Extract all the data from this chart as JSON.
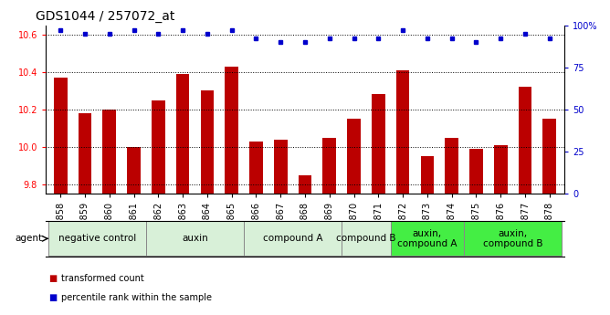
{
  "title": "GDS1044 / 257072_at",
  "samples": [
    "GSM25858",
    "GSM25859",
    "GSM25860",
    "GSM25861",
    "GSM25862",
    "GSM25863",
    "GSM25864",
    "GSM25865",
    "GSM25866",
    "GSM25867",
    "GSM25868",
    "GSM25869",
    "GSM25870",
    "GSM25871",
    "GSM25872",
    "GSM25873",
    "GSM25874",
    "GSM25875",
    "GSM25876",
    "GSM25877",
    "GSM25878"
  ],
  "red_values": [
    10.37,
    10.18,
    10.2,
    10.0,
    10.25,
    10.39,
    10.3,
    10.43,
    10.03,
    10.04,
    9.85,
    10.05,
    10.15,
    10.28,
    10.41,
    9.95,
    10.05,
    9.99,
    10.01,
    10.32,
    10.15
  ],
  "blue_values": [
    97,
    95,
    95,
    97,
    95,
    97,
    95,
    97,
    92,
    90,
    90,
    92,
    92,
    92,
    97,
    92,
    92,
    90,
    92,
    95,
    92
  ],
  "ylim_left": [
    9.75,
    10.65
  ],
  "ylim_right": [
    0,
    100
  ],
  "yticks_left": [
    9.8,
    10.0,
    10.2,
    10.4,
    10.6
  ],
  "yticks_right": [
    0,
    25,
    50,
    75,
    100
  ],
  "agent_groups": [
    {
      "label": "negative control",
      "start": 0,
      "end": 4,
      "color": "#d8f0d8"
    },
    {
      "label": "auxin",
      "start": 4,
      "end": 8,
      "color": "#d8f0d8"
    },
    {
      "label": "compound A",
      "start": 8,
      "end": 12,
      "color": "#d8f0d8"
    },
    {
      "label": "compound B",
      "start": 12,
      "end": 14,
      "color": "#d8f0d8"
    },
    {
      "label": "auxin,\ncompound A",
      "start": 14,
      "end": 17,
      "color": "#44ee44"
    },
    {
      "label": "auxin,\ncompound B",
      "start": 17,
      "end": 21,
      "color": "#44ee44"
    }
  ],
  "bar_color": "#bb0000",
  "dot_color": "#0000cc",
  "grid_color": "#000000",
  "title_fontsize": 10,
  "tick_fontsize": 7,
  "agent_fontsize": 7.5
}
